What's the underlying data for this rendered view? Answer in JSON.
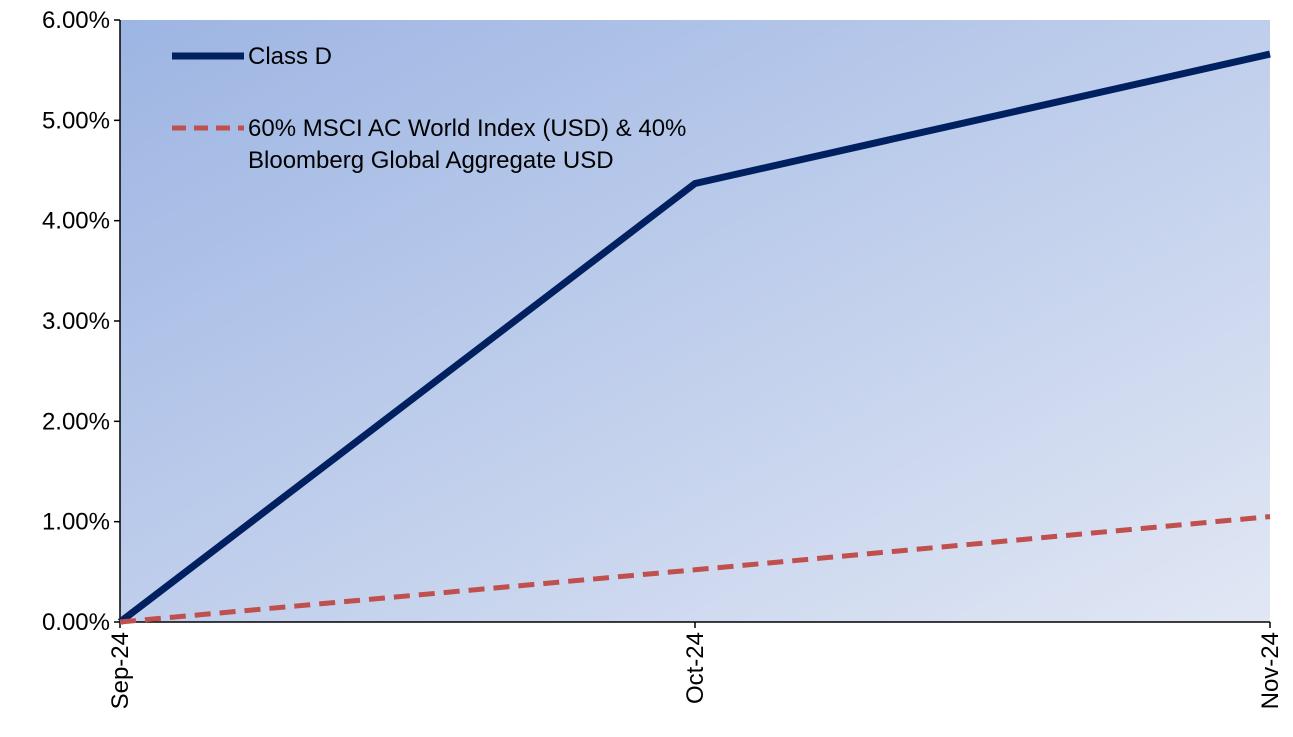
{
  "chart_data": {
    "type": "line",
    "title": "",
    "xlabel": "",
    "ylabel": "",
    "categories": [
      "Sep-24",
      "Oct-24",
      "Nov-24"
    ],
    "ylim": [
      0,
      6
    ],
    "y_ticks": [
      "0.00%",
      "1.00%",
      "2.00%",
      "3.00%",
      "4.00%",
      "5.00%",
      "6.00%"
    ],
    "y_unit": "%",
    "grid": false,
    "legend_position": "top-left",
    "series": [
      {
        "name": "Class D",
        "values": [
          0.0,
          4.37,
          5.66
        ],
        "color": "#002060",
        "style": "solid"
      },
      {
        "name_lines": [
          "60% MSCI AC World Index (USD) & 40%",
          "Bloomberg Global Aggregate USD"
        ],
        "values": [
          0.0,
          0.52,
          1.05
        ],
        "color": "#C0504D",
        "style": "dashed"
      }
    ],
    "background": {
      "gradient_start": "#9DB5E3",
      "gradient_end": "#E1E7F4"
    }
  }
}
